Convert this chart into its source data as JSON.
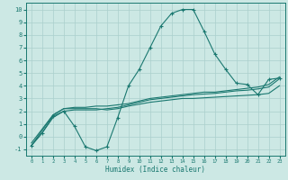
{
  "xlabel": "Humidex (Indice chaleur)",
  "x": [
    0,
    1,
    2,
    3,
    4,
    5,
    6,
    7,
    8,
    9,
    10,
    11,
    12,
    13,
    14,
    15,
    16,
    17,
    18,
    19,
    20,
    21,
    22,
    23
  ],
  "line1": [
    -0.7,
    0.3,
    1.6,
    2.0,
    0.8,
    -0.8,
    -1.1,
    -0.8,
    1.5,
    4.0,
    5.3,
    7.0,
    8.7,
    9.7,
    10.0,
    10.0,
    8.3,
    6.5,
    5.3,
    4.2,
    4.1,
    3.3,
    4.5,
    4.6
  ],
  "line2": [
    -0.5,
    0.6,
    1.7,
    2.2,
    2.3,
    2.3,
    2.4,
    2.4,
    2.5,
    2.6,
    2.8,
    3.0,
    3.1,
    3.2,
    3.3,
    3.4,
    3.5,
    3.5,
    3.6,
    3.7,
    3.8,
    3.9,
    4.1,
    4.7
  ],
  "line3": [
    -0.7,
    0.3,
    1.5,
    2.0,
    2.1,
    2.1,
    2.1,
    2.2,
    2.3,
    2.5,
    2.7,
    2.9,
    3.0,
    3.1,
    3.2,
    3.3,
    3.35,
    3.4,
    3.5,
    3.6,
    3.65,
    3.75,
    3.9,
    4.55
  ],
  "line4": [
    -0.7,
    0.5,
    1.7,
    2.2,
    2.2,
    2.2,
    2.2,
    2.1,
    2.2,
    2.4,
    2.55,
    2.7,
    2.8,
    2.9,
    3.0,
    3.0,
    3.05,
    3.1,
    3.15,
    3.2,
    3.25,
    3.3,
    3.4,
    4.0
  ],
  "line_color": "#1a7870",
  "bg_color": "#cce8e4",
  "grid_color": "#aacfcc",
  "ylim": [
    -1.5,
    10.5
  ],
  "xlim": [
    -0.5,
    23.5
  ],
  "yticks": [
    -1,
    0,
    1,
    2,
    3,
    4,
    5,
    6,
    7,
    8,
    9,
    10
  ],
  "xticks": [
    0,
    1,
    2,
    3,
    4,
    5,
    6,
    7,
    8,
    9,
    10,
    11,
    12,
    13,
    14,
    15,
    16,
    17,
    18,
    19,
    20,
    21,
    22,
    23
  ]
}
